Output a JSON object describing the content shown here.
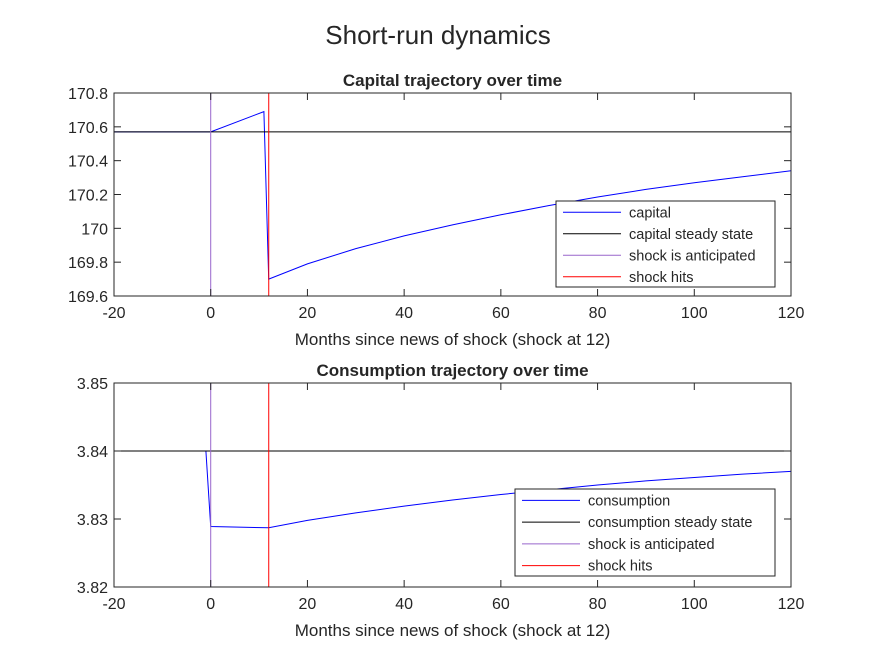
{
  "figure": {
    "suptitle": "Short-run dynamics"
  },
  "chart_data": [
    {
      "type": "line",
      "title": "Capital trajectory over time",
      "xlabel": "Months since news of shock (shock at 12)",
      "ylabel": "",
      "xlim": [
        -20,
        120
      ],
      "ylim": [
        169.6,
        170.8
      ],
      "xticks": [
        -20,
        0,
        20,
        40,
        60,
        80,
        100,
        120
      ],
      "yticks": [
        169.6,
        169.8,
        170,
        170.2,
        170.4,
        170.6,
        170.8
      ],
      "xtick_labels": [
        "-20",
        "0",
        "20",
        "40",
        "60",
        "80",
        "100",
        "120"
      ],
      "ytick_labels": [
        "169.6",
        "169.8",
        "170",
        "170.2",
        "170.4",
        "170.6",
        "170.8"
      ],
      "grid": false,
      "legend_position": "lower-right",
      "series": [
        {
          "name": "capital",
          "color": "#0000ff",
          "x": [
            -20,
            0,
            11,
            12,
            20,
            30,
            40,
            50,
            60,
            70,
            80,
            90,
            100,
            110,
            120
          ],
          "y": [
            170.57,
            170.57,
            170.69,
            169.7,
            169.79,
            169.88,
            169.955,
            170.02,
            170.08,
            170.135,
            170.185,
            170.23,
            170.27,
            170.305,
            170.34
          ]
        },
        {
          "name": "capital steady state",
          "color": "#000000",
          "hline": 170.57
        },
        {
          "name": "shock is anticipated",
          "color": "#9966cc",
          "vline": 0
        },
        {
          "name": "shock hits",
          "color": "#ff0000",
          "vline": 12
        }
      ]
    },
    {
      "type": "line",
      "title": "Consumption trajectory over time",
      "xlabel": "Months since news of shock (shock at 12)",
      "ylabel": "",
      "xlim": [
        -20,
        120
      ],
      "ylim": [
        3.82,
        3.85
      ],
      "xticks": [
        -20,
        0,
        20,
        40,
        60,
        80,
        100,
        120
      ],
      "yticks": [
        3.82,
        3.83,
        3.84,
        3.85
      ],
      "xtick_labels": [
        "-20",
        "0",
        "20",
        "40",
        "60",
        "80",
        "100",
        "120"
      ],
      "ytick_labels": [
        "3.82",
        "3.83",
        "3.84",
        "3.85"
      ],
      "grid": false,
      "legend_position": "lower-right",
      "series": [
        {
          "name": "consumption",
          "color": "#0000ff",
          "x": [
            -20,
            -1,
            0,
            12,
            20,
            30,
            40,
            50,
            60,
            70,
            80,
            90,
            100,
            110,
            120
          ],
          "y": [
            3.84,
            3.84,
            3.8289,
            3.8287,
            3.8298,
            3.8309,
            3.8319,
            3.8328,
            3.8336,
            3.8343,
            3.835,
            3.8356,
            3.8361,
            3.8366,
            3.837
          ]
        },
        {
          "name": "consumption steady state",
          "color": "#000000",
          "hline": 3.84
        },
        {
          "name": "shock is anticipated",
          "color": "#9966cc",
          "vline": 0
        },
        {
          "name": "shock hits",
          "color": "#ff0000",
          "vline": 12
        }
      ]
    }
  ]
}
